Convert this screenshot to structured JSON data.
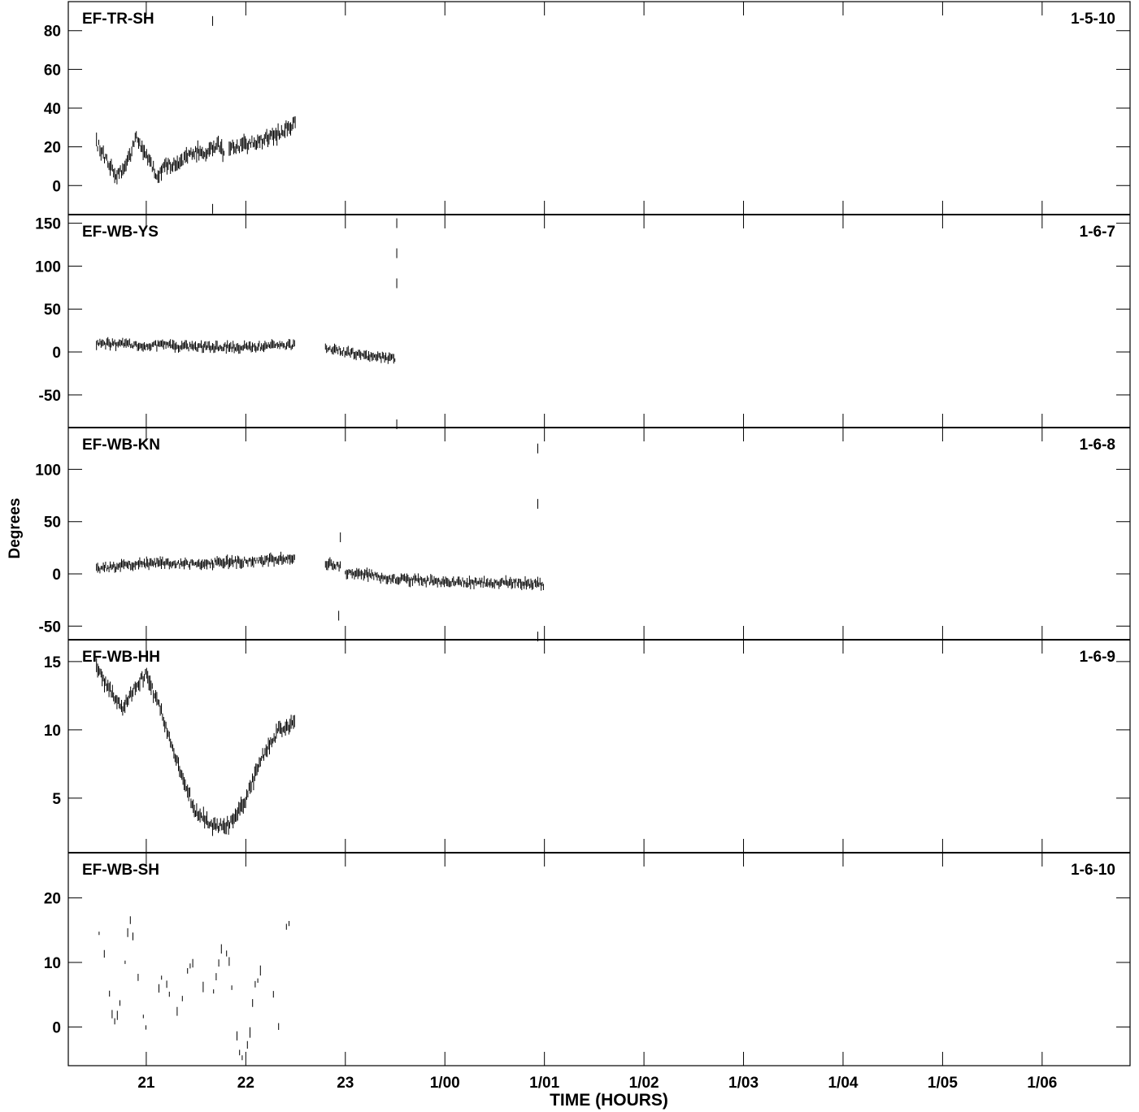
{
  "chart_data": {
    "type": "line",
    "ylabel": "Degrees",
    "xlabel": "TIME (HOURS)",
    "x_ticks": [
      "21",
      "22",
      "23",
      "1/00",
      "1/01",
      "1/02",
      "1/03",
      "1/04",
      "1/05",
      "1/06"
    ],
    "xlim": [
      "20:13",
      "1/06:53"
    ],
    "panels": [
      {
        "name": "EF-TR-SH",
        "id": "1-5-10",
        "ylim": [
          -15,
          95
        ],
        "yticks": [
          0,
          20,
          40,
          60,
          80
        ],
        "noise": 5,
        "segments": [
          {
            "x": [
              "20:30",
              "20:35",
              "20:42",
              "20:48",
              "20:54",
              "21:00",
              "21:06",
              "21:12",
              "21:18",
              "21:24",
              "21:30",
              "21:35",
              "21:40",
              "21:44",
              "21:47"
            ],
            "y": [
              22,
              15,
              6,
              10,
              25,
              16,
              5,
              10,
              12,
              14,
              18,
              17,
              20,
              21,
              15
            ]
          },
          {
            "x": [
              "21:50",
              "22:00",
              "22:10",
              "22:20",
              "22:30"
            ],
            "y": [
              19,
              21,
              23,
              27,
              33
            ]
          }
        ],
        "outliers": [
          {
            "x": "21:40",
            "y": 85
          },
          {
            "x": "21:40",
            "y": -12
          }
        ]
      },
      {
        "name": "EF-WB-YS",
        "id": "1-6-7",
        "ylim": [
          -88,
          160
        ],
        "yticks": [
          -50,
          0,
          50,
          100,
          150
        ],
        "noise": 7,
        "segments": [
          {
            "x": [
              "20:30",
              "21:00",
              "21:30",
              "22:00",
              "22:30"
            ],
            "y": [
              10,
              8,
              6,
              6,
              8
            ]
          },
          {
            "x": [
              "22:48",
              "23:00",
              "23:15",
              "23:30"
            ],
            "y": [
              5,
              0,
              -5,
              -7
            ]
          }
        ],
        "outliers": [
          {
            "x": "23:31",
            "y": 150
          },
          {
            "x": "23:31",
            "y": 115
          },
          {
            "x": "23:31",
            "y": 80
          },
          {
            "x": "23:31",
            "y": -85
          }
        ]
      },
      {
        "name": "EF-WB-KN",
        "id": "1-6-8",
        "ylim": [
          -63,
          140
        ],
        "yticks": [
          -50,
          0,
          50,
          100
        ],
        "noise": 6,
        "segments": [
          {
            "x": [
              "20:30",
              "21:00",
              "21:30",
              "22:00",
              "22:30"
            ],
            "y": [
              5,
              10,
              10,
              12,
              15
            ]
          },
          {
            "x": [
              "22:48",
              "22:57"
            ],
            "y": [
              10,
              8
            ]
          },
          {
            "x": [
              "23:00",
              "23:30",
              "24:00",
              "24:30",
              "25:00"
            ],
            "y": [
              2,
              -5,
              -8,
              -8,
              -10
            ]
          }
        ],
        "outliers": [
          {
            "x": "22:57",
            "y": 35
          },
          {
            "x": "22:56",
            "y": -40
          },
          {
            "x": "24:56",
            "y": 120
          },
          {
            "x": "24:56",
            "y": 67
          },
          {
            "x": "24:56",
            "y": -60
          }
        ]
      },
      {
        "name": "EF-WB-HH",
        "id": "1-6-9",
        "ylim": [
          1,
          16.6
        ],
        "yticks": [
          5,
          10,
          15
        ],
        "noise": 0.7,
        "segments": [
          {
            "x": [
              "20:30",
              "20:45",
              "20:55",
              "21:00",
              "21:10",
              "21:20",
              "21:30",
              "21:40",
              "21:50",
              "22:00",
              "22:10",
              "22:20",
              "22:30"
            ],
            "y": [
              14.5,
              11.5,
              13.5,
              14,
              11,
              7,
              4,
              3,
              3,
              5,
              8,
              10,
              10.5
            ]
          }
        ],
        "outliers": []
      },
      {
        "name": "EF-WB-SH",
        "id": "1-6-10",
        "ylim": [
          -6,
          27
        ],
        "yticks": [
          0,
          10,
          20
        ],
        "noise": 2,
        "dashed": true,
        "segments": [
          {
            "x": [
              "20:30",
              "20:35",
              "20:40",
              "20:45",
              "20:50",
              "20:55",
              "21:00",
              "21:05",
              "21:10",
              "21:15",
              "21:20",
              "21:25",
              "21:30",
              "21:35",
              "21:40",
              "21:45",
              "21:50",
              "21:55",
              "22:00",
              "22:05",
              "22:10",
              "22:15",
              "22:20",
              "22:25",
              "22:30"
            ],
            "y": [
              15,
              12,
              0,
              5,
              17,
              8,
              -1,
              3,
              9,
              3,
              2,
              8,
              10,
              5,
              5,
              12,
              10,
              -3,
              -5,
              5,
              11,
              9,
              -1,
              18,
              12
            ]
          }
        ],
        "outliers": []
      }
    ]
  }
}
